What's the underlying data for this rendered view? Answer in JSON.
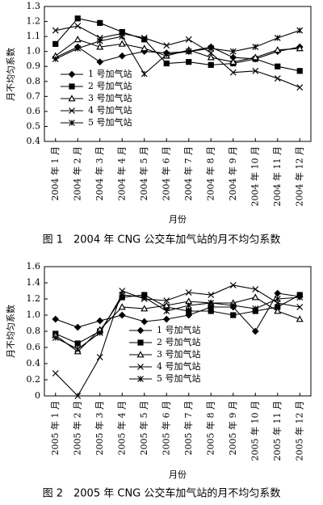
{
  "chart_data": [
    {
      "type": "line",
      "caption": "图 1　2004 年 CNG 公交车加气站的月不均匀系数",
      "x_label": "月份",
      "y_label": "月不均匀系数",
      "categories": [
        "2004 年 1 月",
        "2004 年 2 月",
        "2004 年 3 月",
        "2004 年 4 月",
        "2004 年 5 月",
        "2004 年 6 月",
        "2004 年 7 月",
        "2004 年 8 月",
        "2004 年 9 月",
        "2004 年 10 月",
        "2004 年 11 月",
        "2004 年 12 月"
      ],
      "ylim": [
        0.4,
        1.3
      ],
      "yticks": [
        0.4,
        0.5,
        0.6,
        0.7,
        0.8,
        0.9,
        {
          "value": 1,
          "label": "1.0"
        },
        1.1,
        1.2,
        1.3
      ],
      "legend": "lower left",
      "series": [
        {
          "name": "1 号加气站",
          "color": "#000",
          "marker": "diamond",
          "values": [
            0.96,
            1.03,
            0.93,
            0.97,
            1.0,
            0.99,
            1.0,
            1.03,
            0.96,
            0.95,
            1.0,
            1.03
          ]
        },
        {
          "name": "2 号加气站",
          "color": "#000",
          "marker": "square",
          "values": [
            1.05,
            1.22,
            1.19,
            1.13,
            1.08,
            0.92,
            0.93,
            0.91,
            0.92,
            0.95,
            0.9,
            0.87
          ]
        },
        {
          "name": "3 号加气站",
          "color": "#000",
          "marker": "triangle",
          "values": [
            0.97,
            1.08,
            1.03,
            1.05,
            1.02,
            0.97,
            1.01,
            0.96,
            0.93,
            0.96,
            1.01,
            1.02
          ]
        },
        {
          "name": "4 号加气站",
          "color": "#000",
          "marker": "x",
          "values": [
            1.14,
            1.17,
            1.09,
            1.12,
            1.09,
            1.04,
            1.08,
            0.99,
            0.86,
            0.87,
            0.82,
            0.76
          ]
        },
        {
          "name": "5 号加气站",
          "color": "#000",
          "marker": "star",
          "values": [
            0.95,
            1.02,
            1.07,
            1.1,
            0.85,
            0.98,
            1.0,
            1.02,
            1.0,
            1.03,
            1.09,
            1.14
          ]
        }
      ]
    },
    {
      "type": "line",
      "caption": "图 2　2005 年 CNG 公交车加气站的月不均匀系数",
      "x_label": "月份",
      "y_label": "月不均匀系数",
      "categories": [
        "2005 年 1 月",
        "2005 年 2 月",
        "2005 年 3 月",
        "2005 年 4 月",
        "2005 年 5 月",
        "2005 年 6 月",
        "2005 年 7 月",
        "2005 年 8 月",
        "2005 年 9 月",
        "2005 年 10 月",
        "2005 年 11 月",
        "2005 年 12 月"
      ],
      "ylim": [
        0,
        1.6
      ],
      "yticks": [
        0,
        0.2,
        0.4,
        0.6,
        0.8,
        {
          "value": 1,
          "label": "1.0"
        },
        1.2,
        1.4,
        1.6
      ],
      "legend": "lower center",
      "series": [
        {
          "name": "1 号加气站",
          "color": "#000",
          "marker": "diamond",
          "values": [
            0.95,
            0.85,
            0.93,
            1.0,
            0.92,
            0.95,
            1.0,
            1.1,
            1.1,
            0.8,
            1.27,
            1.23
          ]
        },
        {
          "name": "2 号加气站",
          "color": "#000",
          "marker": "square",
          "values": [
            0.77,
            0.65,
            0.8,
            1.22,
            1.25,
            1.1,
            1.05,
            1.05,
            1.0,
            1.05,
            1.1,
            1.25
          ]
        },
        {
          "name": "3 号加气站",
          "color": "#000",
          "marker": "triangle",
          "values": [
            0.75,
            0.55,
            0.82,
            1.1,
            1.08,
            1.12,
            1.17,
            1.15,
            1.15,
            1.22,
            1.05,
            0.95
          ]
        },
        {
          "name": "4 号加气站",
          "color": "#000",
          "marker": "x",
          "values": [
            0.28,
            0.0,
            0.48,
            1.3,
            1.2,
            1.18,
            1.28,
            1.25,
            1.37,
            1.32,
            1.15,
            1.1
          ]
        },
        {
          "name": "5 号加气站",
          "color": "#000",
          "marker": "star",
          "values": [
            0.72,
            0.58,
            0.78,
            1.25,
            1.22,
            1.05,
            1.12,
            1.15,
            1.12,
            1.08,
            1.2,
            1.22
          ]
        }
      ]
    }
  ]
}
